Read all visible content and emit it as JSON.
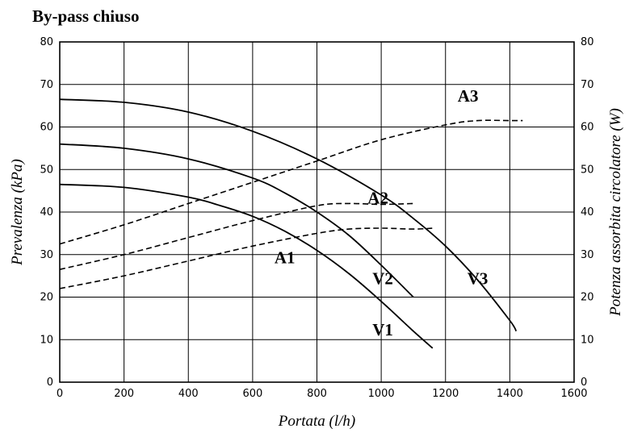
{
  "chart_data": {
    "type": "line",
    "title": "By-pass chiuso",
    "xlabel": "Portata (l/h)",
    "ylabel": "Prevalenza (kPa)",
    "y2label": "Potenza assorbita circolatore (W)",
    "xlim": [
      0,
      1600
    ],
    "ylim": [
      0,
      80
    ],
    "y2lim": [
      0,
      80
    ],
    "x_ticks": [
      "0",
      "200",
      "400",
      "600",
      "800",
      "1000",
      "1200",
      "1400",
      "1600"
    ],
    "y_ticks": [
      "0",
      "10",
      "20",
      "30",
      "40",
      "50",
      "60",
      "70",
      "80"
    ],
    "y2_ticks": [
      "0",
      "10",
      "20",
      "30",
      "40",
      "50",
      "60",
      "70",
      "80"
    ],
    "grid": true,
    "series": [
      {
        "name": "V1",
        "axis": "left",
        "style": "solid",
        "x": [
          0,
          200,
          400,
          500,
          600,
          700,
          800,
          900,
          1000,
          1100,
          1160
        ],
        "y": [
          46.5,
          45.8,
          43.5,
          41.5,
          39,
          35.5,
          31,
          25.5,
          19,
          12,
          8
        ]
      },
      {
        "name": "V2",
        "axis": "left",
        "style": "solid",
        "x": [
          0,
          200,
          400,
          600,
          700,
          800,
          900,
          1000,
          1100
        ],
        "y": [
          56,
          55,
          52.5,
          48,
          44.5,
          40,
          34.5,
          27.5,
          20
        ]
      },
      {
        "name": "V3",
        "axis": "left",
        "style": "solid",
        "x": [
          0,
          200,
          400,
          600,
          800,
          1000,
          1100,
          1200,
          1300,
          1400,
          1420
        ],
        "y": [
          66.5,
          65.8,
          63.5,
          59,
          52.5,
          44,
          38.5,
          32,
          24,
          14.5,
          12
        ]
      },
      {
        "name": "A1",
        "axis": "right",
        "style": "dashed",
        "x": [
          0,
          200,
          400,
          600,
          800,
          900,
          1000,
          1100,
          1160
        ],
        "y": [
          22,
          25,
          28.5,
          32,
          35,
          36,
          36.2,
          36,
          36.2
        ]
      },
      {
        "name": "A2",
        "axis": "right",
        "style": "dashed",
        "x": [
          0,
          200,
          400,
          600,
          800,
          900,
          1000,
          1100
        ],
        "y": [
          26.5,
          30,
          34,
          38,
          41.5,
          42,
          41.8,
          42
        ]
      },
      {
        "name": "A3",
        "axis": "right",
        "style": "dashed",
        "x": [
          0,
          200,
          400,
          600,
          800,
          1000,
          1200,
          1300,
          1400,
          1440
        ],
        "y": [
          32.5,
          37,
          42,
          47,
          52,
          57,
          60.5,
          61.5,
          61.5,
          61.5
        ]
      }
    ]
  },
  "series_labels": [
    {
      "text": "V1",
      "x": 1005,
      "y": 11
    },
    {
      "text": "V2",
      "x": 1005,
      "y": 23
    },
    {
      "text": "V3",
      "x": 1300,
      "y": 23
    },
    {
      "text": "A1",
      "x": 700,
      "y": 28
    },
    {
      "text": "A2",
      "x": 990,
      "y": 42
    },
    {
      "text": "A3",
      "x": 1270,
      "y": 66
    }
  ]
}
